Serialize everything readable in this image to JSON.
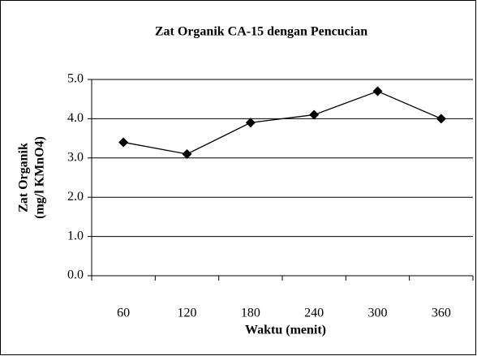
{
  "chart_data": {
    "type": "line",
    "title": "Zat Organik CA-15 dengan Pencucian",
    "xlabel": "Waktu (menit)",
    "ylabel": [
      "Zat Organik",
      "(mg/l KMnO4)"
    ],
    "categories": [
      "60",
      "120",
      "180",
      "240",
      "300",
      "360"
    ],
    "series": [
      {
        "name": "Zat Organik",
        "color": "#000000",
        "values": [
          3.4,
          3.1,
          3.9,
          4.1,
          4.7,
          4.0
        ]
      }
    ],
    "ylim": [
      0,
      5
    ],
    "yticks": [
      {
        "value": 0,
        "label": "0.0"
      },
      {
        "value": 1,
        "label": "1.0"
      },
      {
        "value": 2,
        "label": "2.0"
      },
      {
        "value": 3,
        "label": "3.0"
      },
      {
        "value": 4,
        "label": "4.0"
      },
      {
        "value": 5,
        "label": "5.0"
      }
    ],
    "grid": true
  }
}
